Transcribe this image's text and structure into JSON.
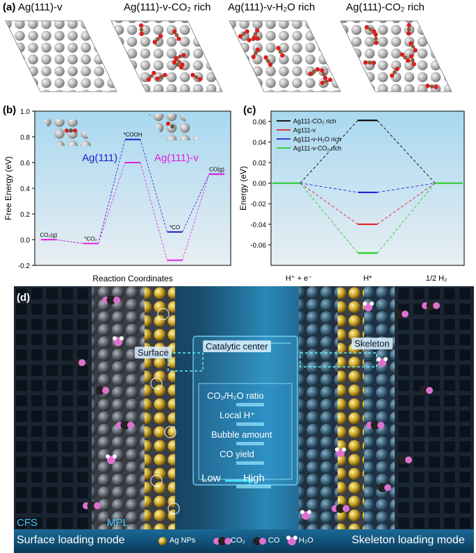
{
  "panel_a": {
    "label": "(a)",
    "titles": [
      "Ag(111)-v",
      "Ag(111)-v-CO₂ rich",
      "Ag(111)-v-H₂O rich",
      "Ag(111)-CO₂ rich"
    ]
  },
  "panel_b": {
    "label": "(b)",
    "inset_labels": {
      "ag111": "Ag(111)",
      "ag111v": "Ag(111)-v"
    },
    "colors": {
      "ag111": "#2020c8",
      "ag111v": "#e020e0"
    }
  },
  "panel_c": {
    "label": "(c)",
    "colors": {
      "ag111_co2_rich": "#000000",
      "ag111_v": "#e02020",
      "ag111_v_h2o_rich": "#2020e0",
      "ag111_v_co2_rich": "#20d020",
      "equilibrium": "#22cc22"
    }
  },
  "panel_d": {
    "label": "(d)",
    "tags": {
      "surface": "Surface",
      "catalytic_center": "Catalytic center",
      "skeleton": "Skeleton"
    },
    "controls": [
      "CO₂/H₂O ratio",
      "Local H⁺",
      "Bubble amount",
      "CO yield"
    ],
    "low": "Low",
    "high": "High",
    "cfs": "CFS",
    "mpl": "MPL",
    "left_mode": "Surface loading mode",
    "right_mode": "Skeleton loading mode",
    "legend": {
      "ag": "Ag NPs",
      "co2": "CO₂",
      "co": "CO",
      "h2o": "H₂O"
    }
  },
  "chart_data": [
    {
      "type": "line",
      "title": "",
      "xlabel": "Reaction Coordinates",
      "ylabel": "Free Energy (eV)",
      "ylim": [
        -0.2,
        1.0
      ],
      "yticks": [
        "-0.2",
        "0.0",
        "0.2",
        "0.4",
        "0.6",
        "0.8",
        "1.0"
      ],
      "steps": [
        "CO₂(g)",
        "*CO₂",
        "*COOH",
        "*CO",
        "CO(g)"
      ],
      "series": [
        {
          "name": "Ag(111)",
          "values": [
            0.0,
            -0.03,
            0.78,
            0.06,
            0.51
          ]
        },
        {
          "name": "Ag(111)-v",
          "values": [
            0.0,
            -0.03,
            0.6,
            -0.16,
            0.51
          ]
        }
      ]
    },
    {
      "type": "line",
      "title": "",
      "xlabel": "",
      "ylabel": "Energy (eV)",
      "ylim": [
        -0.08,
        0.07
      ],
      "yticks": [
        "0.06",
        "0.04",
        "0.02",
        "0.00",
        "-0.02",
        "-0.04",
        "-0.06"
      ],
      "categories": [
        "H⁺ + e⁻",
        "H*",
        "1/2 H₂"
      ],
      "series": [
        {
          "name": "Ag111-CO₂ rich",
          "values": [
            0.0,
            0.061,
            0.0
          ]
        },
        {
          "name": "Ag111-v",
          "values": [
            0.0,
            -0.04,
            0.0
          ]
        },
        {
          "name": "Ag111-v-H₂O rich",
          "values": [
            0.0,
            -0.009,
            0.0
          ]
        },
        {
          "name": "Ag111-v-CO₂ rich",
          "values": [
            0.0,
            -0.068,
            0.0
          ]
        }
      ]
    }
  ]
}
